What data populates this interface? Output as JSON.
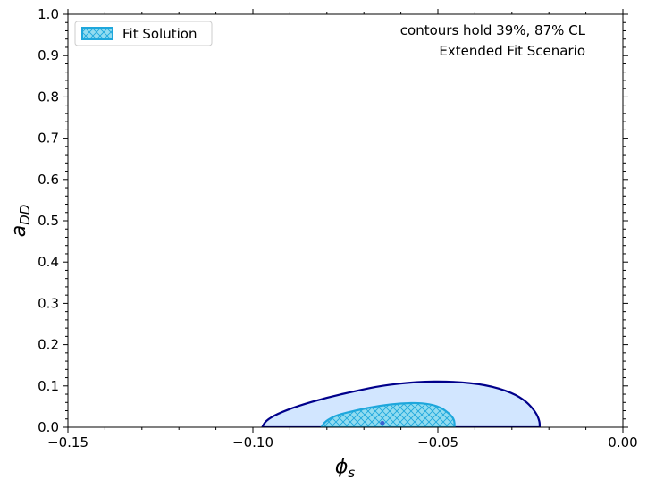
{
  "chart_data": {
    "type": "contour",
    "xlabel": "ϕ",
    "xlabel_sub": "s",
    "ylabel": "a",
    "ylabel_sub": "DD",
    "xlim": [
      -0.15,
      0.0
    ],
    "ylim": [
      0.0,
      1.0
    ],
    "x_ticks": [
      -0.15,
      -0.1,
      -0.05,
      0.0
    ],
    "x_tick_labels": [
      "−0.15",
      "−0.10",
      "−0.05",
      "0.00"
    ],
    "y_ticks": [
      0.0,
      0.1,
      0.2,
      0.3,
      0.4,
      0.5,
      0.6,
      0.7,
      0.8,
      0.9,
      1.0
    ],
    "y_tick_labels": [
      "0.0",
      "0.1",
      "0.2",
      "0.3",
      "0.4",
      "0.5",
      "0.6",
      "0.7",
      "0.8",
      "0.9",
      "1.0"
    ],
    "grid": false,
    "legend": {
      "position": "top-left",
      "entries": [
        {
          "label": "Fit Solution",
          "hatch": "crosshatch"
        }
      ]
    },
    "annotations": [
      "contours hold 39%, 87% CL",
      "Extended Fit Scenario"
    ],
    "best_fit": {
      "x": -0.065,
      "y": 0.01
    },
    "contours": [
      {
        "level": "87% CL",
        "fill": "#d2e6ff",
        "stroke": "#00008b",
        "points": [
          [
            -0.0975,
            0.0
          ],
          [
            -0.0965,
            0.016
          ],
          [
            -0.0935,
            0.032
          ],
          [
            -0.088,
            0.051
          ],
          [
            -0.08,
            0.072
          ],
          [
            -0.072,
            0.088
          ],
          [
            -0.065,
            0.101
          ],
          [
            -0.056,
            0.11
          ],
          [
            -0.046,
            0.111
          ],
          [
            -0.037,
            0.103
          ],
          [
            -0.03,
            0.084
          ],
          [
            -0.026,
            0.062
          ],
          [
            -0.0235,
            0.036
          ],
          [
            -0.0225,
            0.014
          ],
          [
            -0.0225,
            0.0
          ]
        ]
      },
      {
        "level": "39% CL",
        "fill": "#92dcf0",
        "stroke": "#1ea7dc",
        "hatched": true,
        "points": [
          [
            -0.0815,
            0.0
          ],
          [
            -0.0805,
            0.014
          ],
          [
            -0.0775,
            0.029
          ],
          [
            -0.072,
            0.041
          ],
          [
            -0.066,
            0.052
          ],
          [
            -0.06,
            0.058
          ],
          [
            -0.0545,
            0.059
          ],
          [
            -0.05,
            0.052
          ],
          [
            -0.047,
            0.034
          ],
          [
            -0.0455,
            0.018
          ],
          [
            -0.0455,
            0.0
          ]
        ]
      }
    ]
  }
}
